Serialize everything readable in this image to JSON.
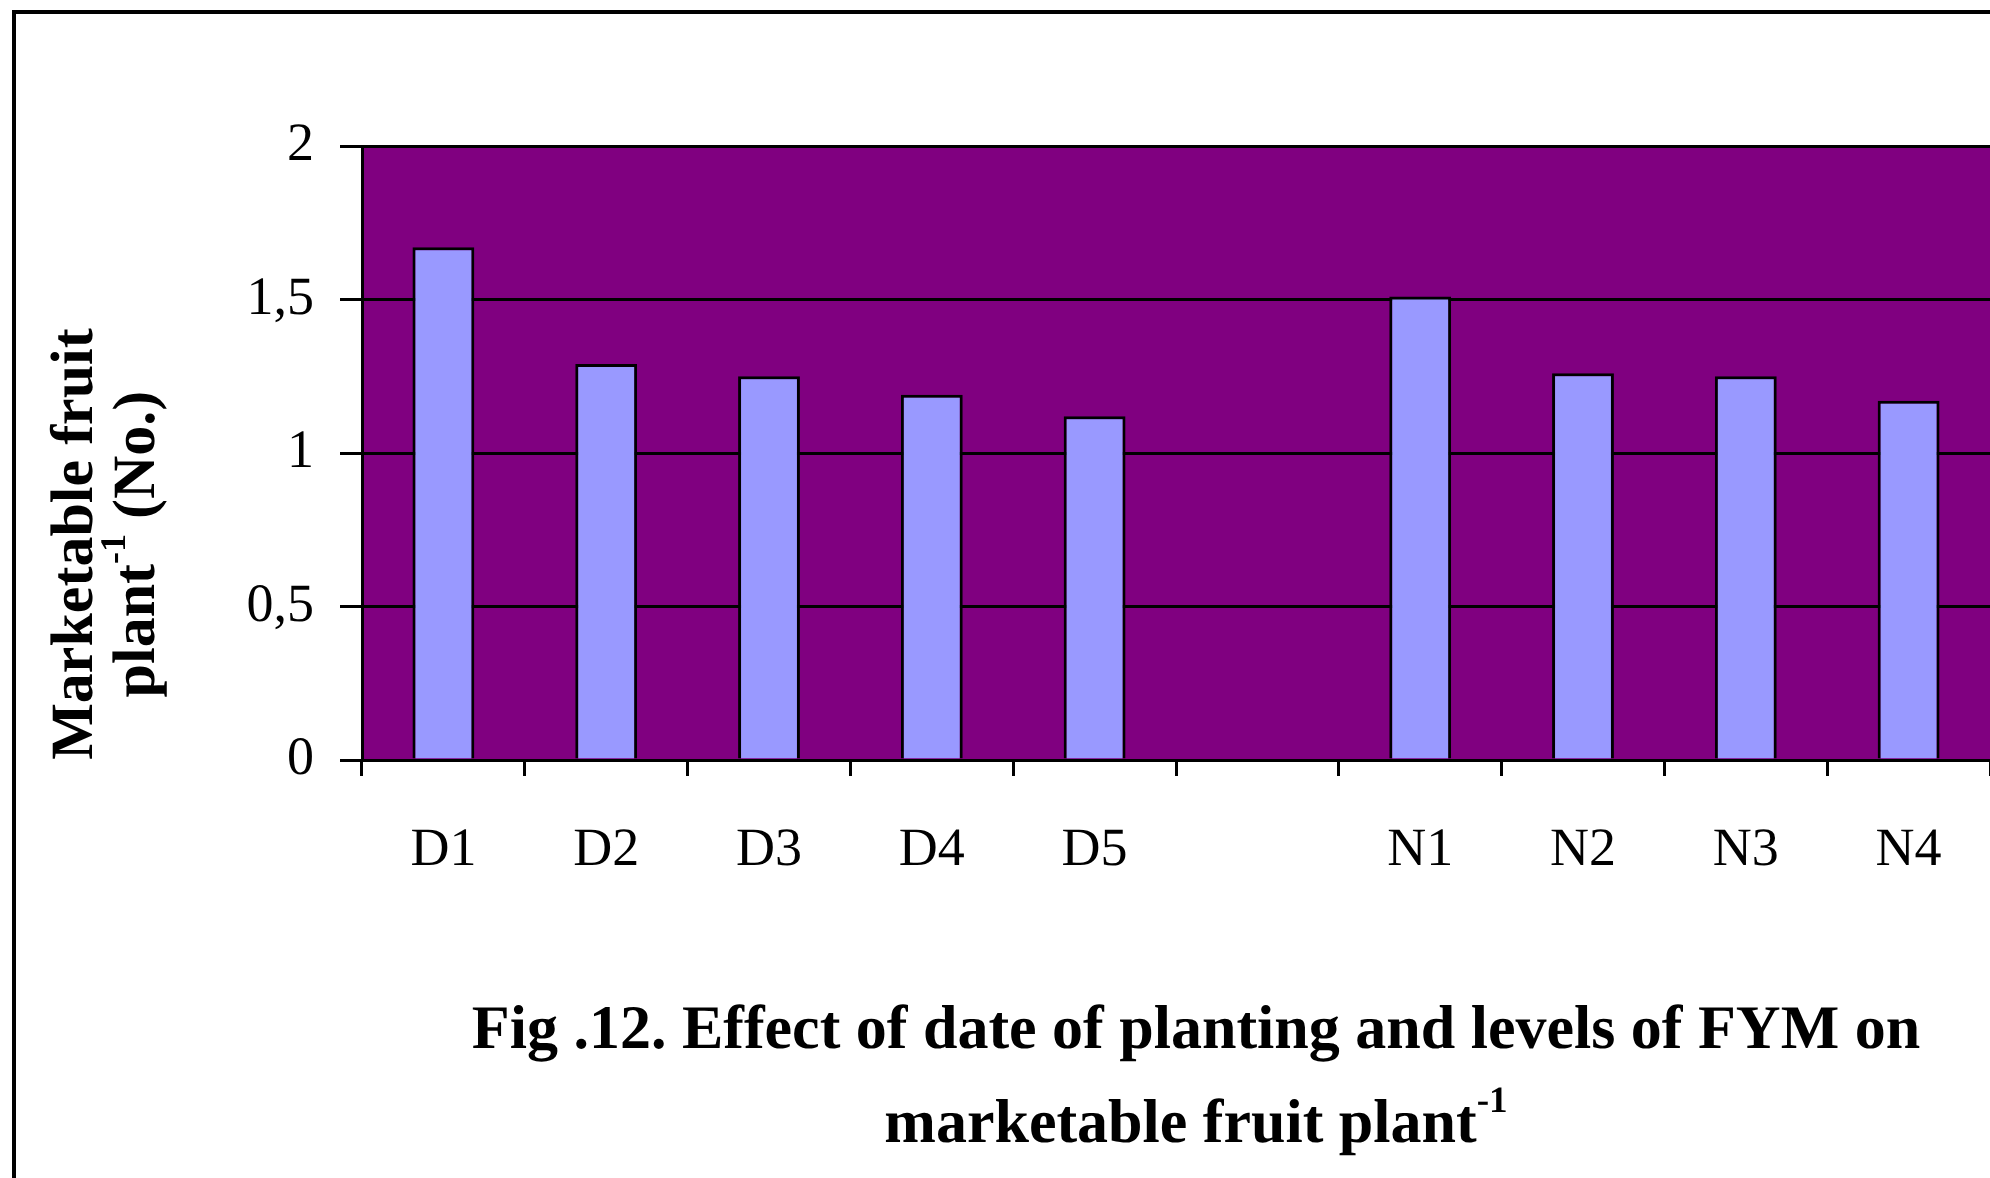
{
  "chart_data": {
    "type": "bar",
    "title": "Fig .12. Effect of date of planting and levels of FYM on marketable fruit plant$^{-1}$",
    "ylabel": "Marketable fruit plant$^{-1}$ (No.)",
    "categories": [
      "D1",
      "D2",
      "D3",
      "D4",
      "D5",
      null,
      "N1",
      "N2",
      "N3",
      "N4"
    ],
    "values": [
      1.67,
      1.29,
      1.25,
      1.19,
      1.12,
      null,
      1.51,
      1.26,
      1.25,
      1.17
    ],
    "color": "#9999ff",
    "ylim": [
      0,
      2
    ],
    "yticks": [
      0,
      {
        "value": 0.5,
        "label": "0,5"
      },
      1,
      {
        "value": 1.5,
        "label": "1,5"
      },
      2
    ],
    "grid": "y",
    "legend": false
  }
}
